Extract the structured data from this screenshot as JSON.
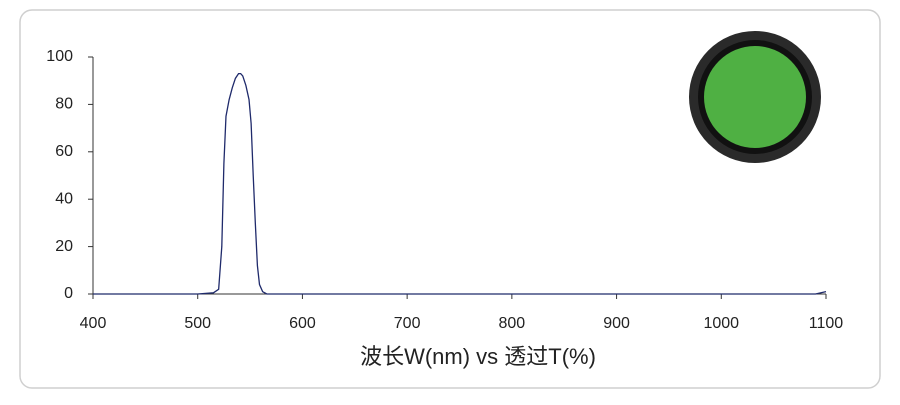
{
  "chart_data": {
    "type": "line",
    "x_label": "波长W(nm) vs 透过T(%)",
    "x": [
      400,
      440,
      500,
      515,
      520,
      523,
      525,
      527,
      530,
      533,
      536,
      539,
      541,
      543,
      546,
      549,
      551,
      553,
      555,
      557,
      559,
      562,
      566,
      600,
      700,
      800,
      900,
      1000,
      1090,
      1100
    ],
    "series": [
      {
        "color": "#1f2a6b",
        "values": [
          0,
          0,
          0,
          0.5,
          2,
          20,
          55,
          75,
          82,
          87,
          91,
          93,
          93,
          92,
          88,
          82,
          72,
          50,
          30,
          12,
          4,
          1,
          0,
          0,
          0,
          0,
          0,
          0,
          0,
          1
        ]
      }
    ],
    "xlim": [
      400,
      1100
    ],
    "xticks": [
      400,
      500,
      600,
      700,
      800,
      900,
      1000,
      1100
    ],
    "ylim": [
      0,
      100
    ],
    "yticks": [
      0,
      20,
      40,
      60,
      80,
      100
    ]
  }
}
